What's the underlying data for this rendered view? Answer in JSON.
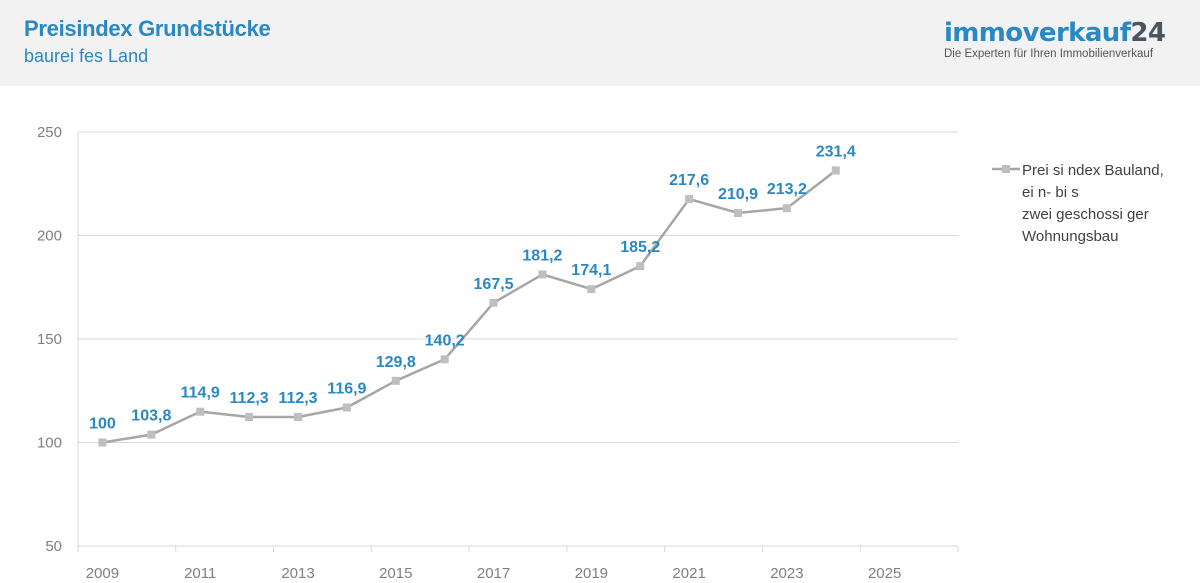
{
  "header": {
    "title": "Preisindex Grundstücke",
    "subtitle": "baurei fes Land"
  },
  "logo": {
    "word": "immoverkauf",
    "number": "24",
    "tagline": "Die Experten für Ihren Immobilienverkauf"
  },
  "colors": {
    "accent": "#2a88c2",
    "line": "#a6a6a6",
    "marker": "#bfbfbf",
    "grid": "#d9d9d9",
    "axis_text": "#7f7f7f"
  },
  "chart_data": {
    "type": "line",
    "x": [
      2009,
      2010,
      2011,
      2012,
      2013,
      2014,
      2015,
      2016,
      2017,
      2018,
      2019,
      2020,
      2021,
      2022,
      2023,
      2024
    ],
    "series": [
      {
        "name": "Prei si ndex Bauland, ei n- bi s zwei geschossi ger Wohnungsbau",
        "values": [
          100,
          103.8,
          114.9,
          112.3,
          112.3,
          116.9,
          129.8,
          140.2,
          167.5,
          181.2,
          174.1,
          185.2,
          217.6,
          210.9,
          213.2,
          231.4
        ],
        "labels": [
          "100",
          "103,8",
          "114,9",
          "112,3",
          "112,3",
          "116,9",
          "129,8",
          "140,2",
          "167,5",
          "181,2",
          "174,1",
          "185,2",
          "217,6",
          "210,9",
          "213,2",
          "231,4"
        ]
      }
    ],
    "xlim": [
      2009,
      2026
    ],
    "ylim": [
      50,
      250
    ],
    "yticks": [
      50,
      100,
      150,
      200,
      250
    ],
    "xticks": [
      2009,
      2011,
      2013,
      2015,
      2017,
      2019,
      2021,
      2023,
      2025
    ],
    "grid": true,
    "legend_position": "right"
  }
}
